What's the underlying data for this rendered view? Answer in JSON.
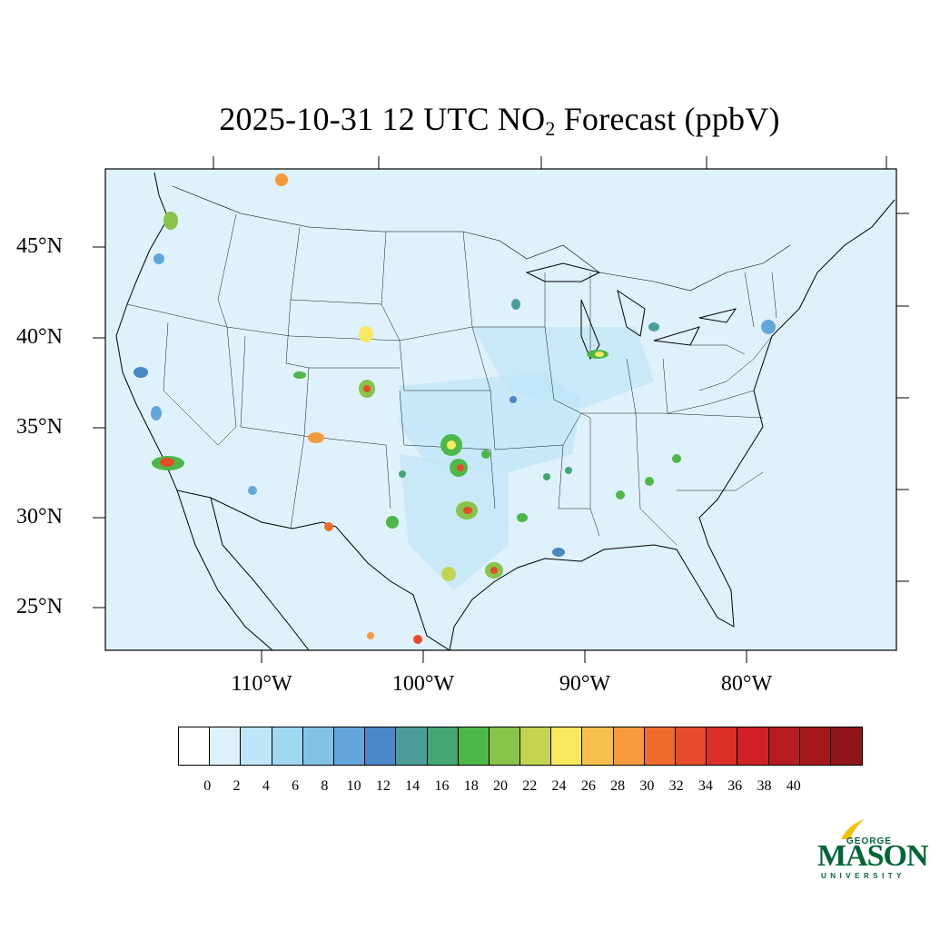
{
  "title": {
    "prefix": "2025-10-31 12 UTC NO",
    "sub": "2",
    "suffix": " Forecast (ppbV)"
  },
  "y_labels": [
    "45°N",
    "40°N",
    "35°N",
    "30°N",
    "25°N"
  ],
  "x_labels": [
    "110°W",
    "100°W",
    "90°W",
    "80°W"
  ],
  "colorbar": {
    "colors": [
      "#ffffff",
      "#dff1fb",
      "#bfe6f8",
      "#a0d8f2",
      "#83c2e8",
      "#64a6dc",
      "#4a87c6",
      "#4b9d9c",
      "#46a673",
      "#4db848",
      "#88c34a",
      "#c3d550",
      "#f7e860",
      "#f7c04d",
      "#f79a3e",
      "#f06a2b",
      "#e64b2a",
      "#db3026",
      "#cf2026",
      "#b51c22",
      "#a5191d",
      "#8f1518"
    ],
    "labels": [
      "0",
      "2",
      "4",
      "6",
      "8",
      "10",
      "12",
      "14",
      "16",
      "18",
      "20",
      "22",
      "24",
      "26",
      "28",
      "30",
      "32",
      "34",
      "36",
      "38",
      "40"
    ]
  },
  "map": {
    "ocean_color": "#dff1fb",
    "land_color": "#dff1fb"
  },
  "logo": {
    "top": "GEORGE",
    "main": "MASON",
    "bottom": "UNIVERSITY",
    "color": "#006633",
    "accent": "#f2c200"
  }
}
